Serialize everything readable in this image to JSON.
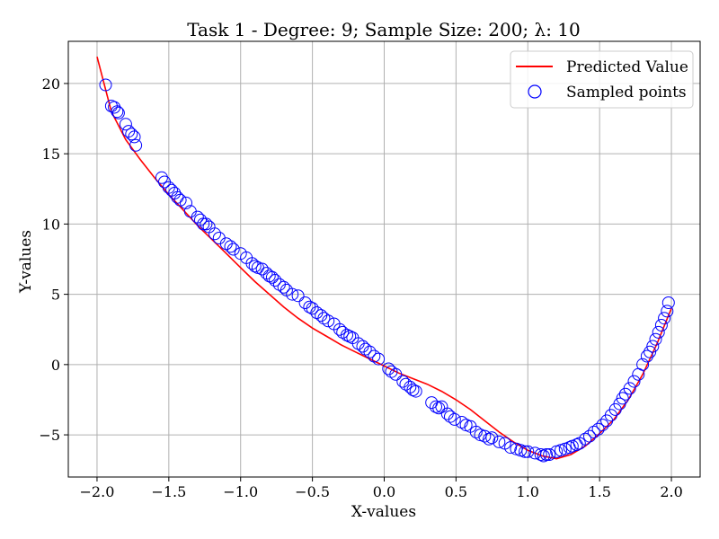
{
  "chart_data": {
    "type": "scatter",
    "title": "Task 1 - Degree: 9; Sample Size: 200; λ: 10",
    "xlabel": "X-values",
    "ylabel": "Y-values",
    "xlim": [
      -2.2,
      2.2
    ],
    "ylim": [
      -8,
      23
    ],
    "xticks": [
      -2.0,
      -1.5,
      -1.0,
      -0.5,
      0.0,
      0.5,
      1.0,
      1.5,
      2.0
    ],
    "xtick_labels": [
      "−2.0",
      "−1.5",
      "−1.0",
      "−0.5",
      "0.0",
      "0.5",
      "1.0",
      "1.5",
      "2.0"
    ],
    "yticks": [
      -5,
      0,
      5,
      10,
      15,
      20
    ],
    "ytick_labels": [
      "−5",
      "0",
      "5",
      "10",
      "15",
      "20"
    ],
    "grid": true,
    "legend_position": "top-right",
    "colors": {
      "predicted": "#ff0000",
      "sampled": "#0000ff",
      "grid": "#b0b0b0"
    },
    "series": [
      {
        "name": "Predicted Value",
        "kind": "line",
        "x": [
          -2.0,
          -1.9,
          -1.8,
          -1.7,
          -1.6,
          -1.5,
          -1.4,
          -1.3,
          -1.2,
          -1.1,
          -1.0,
          -0.9,
          -0.8,
          -0.7,
          -0.6,
          -0.5,
          -0.4,
          -0.3,
          -0.2,
          -0.1,
          0.0,
          0.1,
          0.2,
          0.3,
          0.4,
          0.5,
          0.6,
          0.7,
          0.8,
          0.9,
          1.0,
          1.1,
          1.2,
          1.3,
          1.4,
          1.5,
          1.6,
          1.7,
          1.8,
          1.9,
          2.0
        ],
        "y": [
          21.9,
          18.0,
          16.0,
          14.6,
          13.3,
          12.1,
          11.0,
          9.9,
          8.9,
          7.9,
          6.9,
          5.9,
          5.0,
          4.1,
          3.3,
          2.6,
          2.0,
          1.4,
          0.9,
          0.4,
          -0.1,
          -0.6,
          -1.0,
          -1.4,
          -1.9,
          -2.5,
          -3.2,
          -4.0,
          -4.8,
          -5.5,
          -6.1,
          -6.5,
          -6.7,
          -6.4,
          -5.8,
          -4.9,
          -3.9,
          -2.5,
          -0.7,
          1.5,
          4.0
        ]
      },
      {
        "name": "Sampled points",
        "kind": "scatter",
        "x": [
          -1.94,
          -1.9,
          -1.88,
          -1.86,
          -1.85,
          -1.8,
          -1.78,
          -1.76,
          -1.74,
          -1.73,
          -1.55,
          -1.53,
          -1.5,
          -1.48,
          -1.46,
          -1.44,
          -1.42,
          -1.38,
          -1.35,
          -1.3,
          -1.28,
          -1.26,
          -1.24,
          -1.22,
          -1.18,
          -1.15,
          -1.1,
          -1.07,
          -1.05,
          -1.0,
          -0.96,
          -0.92,
          -0.9,
          -0.88,
          -0.85,
          -0.82,
          -0.8,
          -0.78,
          -0.76,
          -0.73,
          -0.7,
          -0.68,
          -0.64,
          -0.6,
          -0.55,
          -0.52,
          -0.5,
          -0.47,
          -0.44,
          -0.42,
          -0.39,
          -0.35,
          -0.31,
          -0.29,
          -0.26,
          -0.24,
          -0.22,
          -0.18,
          -0.15,
          -0.13,
          -0.1,
          -0.07,
          -0.04,
          0.03,
          0.05,
          0.08,
          0.13,
          0.15,
          0.18,
          0.2,
          0.22,
          0.33,
          0.36,
          0.38,
          0.4,
          0.44,
          0.46,
          0.49,
          0.54,
          0.57,
          0.6,
          0.64,
          0.67,
          0.7,
          0.73,
          0.75,
          0.8,
          0.84,
          0.88,
          0.92,
          0.95,
          0.98,
          1.0,
          1.05,
          1.09,
          1.11,
          1.13,
          1.15,
          1.2,
          1.23,
          1.26,
          1.29,
          1.31,
          1.34,
          1.36,
          1.4,
          1.43,
          1.46,
          1.49,
          1.52,
          1.55,
          1.58,
          1.61,
          1.64,
          1.66,
          1.68,
          1.71,
          1.74,
          1.77,
          1.8,
          1.83,
          1.85,
          1.87,
          1.89,
          1.91,
          1.93,
          1.95,
          1.97,
          1.98
        ],
        "y": [
          19.9,
          18.4,
          18.3,
          18.0,
          17.9,
          17.1,
          16.6,
          16.4,
          16.2,
          15.6,
          13.3,
          13.0,
          12.6,
          12.4,
          12.2,
          11.9,
          11.7,
          11.5,
          10.9,
          10.5,
          10.3,
          10.0,
          10.0,
          9.8,
          9.3,
          9.0,
          8.6,
          8.4,
          8.2,
          7.9,
          7.6,
          7.2,
          7.0,
          6.9,
          6.8,
          6.5,
          6.3,
          6.2,
          6.0,
          5.7,
          5.5,
          5.3,
          5.0,
          4.9,
          4.4,
          4.1,
          4.0,
          3.7,
          3.5,
          3.3,
          3.1,
          2.9,
          2.5,
          2.3,
          2.1,
          2.0,
          1.9,
          1.5,
          1.3,
          1.1,
          0.9,
          0.6,
          0.4,
          -0.3,
          -0.5,
          -0.7,
          -1.2,
          -1.4,
          -1.6,
          -1.8,
          -1.9,
          -2.7,
          -3.0,
          -3.1,
          -3.0,
          -3.5,
          -3.7,
          -3.9,
          -4.1,
          -4.3,
          -4.4,
          -4.8,
          -5.0,
          -5.1,
          -5.3,
          -5.2,
          -5.5,
          -5.6,
          -5.9,
          -6.0,
          -6.1,
          -6.2,
          -6.2,
          -6.3,
          -6.4,
          -6.5,
          -6.4,
          -6.4,
          -6.2,
          -6.1,
          -6.0,
          -5.9,
          -5.8,
          -5.7,
          -5.6,
          -5.3,
          -5.1,
          -4.8,
          -4.6,
          -4.3,
          -4.0,
          -3.6,
          -3.2,
          -2.8,
          -2.4,
          -2.1,
          -1.7,
          -1.2,
          -0.7,
          0.0,
          0.6,
          0.9,
          1.3,
          1.8,
          2.3,
          2.8,
          3.3,
          3.8,
          4.4
        ]
      }
    ]
  }
}
